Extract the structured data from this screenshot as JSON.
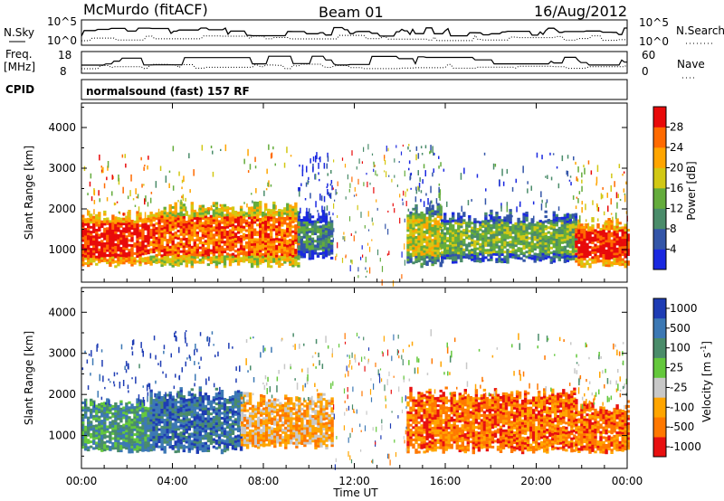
{
  "header": {
    "station": "McMurdo (fitACF)",
    "beam": "Beam 01",
    "date": "16/Aug/2012"
  },
  "top_panels": {
    "nsky_label": "N.Sky",
    "nsky_ticks": [
      "10^5",
      "10^0"
    ],
    "nsearch_label": "N.Search",
    "nsearch_ticks": [
      "10^5",
      "10^0"
    ],
    "freq_label_1": "Freq.",
    "freq_label_2": "[MHz]",
    "freq_ticks": [
      "18",
      "8"
    ],
    "nave_label": "Nave",
    "nave_ticks": [
      "60",
      "0"
    ],
    "cpid_label": "CPID",
    "cpid_text": "normalsound (fast) 157 RF"
  },
  "chart_data": [
    {
      "type": "heatmap",
      "title": "",
      "xlabel": "Time UT",
      "ylabel": "Slant Range [km]",
      "x_ticks": [
        "00:00",
        "04:00",
        "08:00",
        "12:00",
        "16:00",
        "20:00",
        "00:00"
      ],
      "xlim": [
        0,
        24
      ],
      "ylim": [
        200,
        4600
      ],
      "y_ticks": [
        1000,
        2000,
        3000,
        4000
      ],
      "colorbar": {
        "label": "Power [dB]",
        "ticks": [
          "4",
          "8",
          "12",
          "16",
          "20",
          "24",
          "28"
        ],
        "colors": [
          "#1a28e0",
          "#3355a8",
          "#4a8c6a",
          "#64ac3c",
          "#d2c814",
          "#ffa500",
          "#ff6a00",
          "#e80a0a"
        ]
      },
      "echo_regions": [
        {
          "t_start": 0.0,
          "t_end": 3.0,
          "r_min": 600,
          "r_max": 1800,
          "level": 7
        },
        {
          "t_start": 3.0,
          "t_end": 9.5,
          "r_min": 600,
          "r_max": 2000,
          "level": 6
        },
        {
          "t_start": 9.5,
          "t_end": 11.0,
          "r_min": 800,
          "r_max": 1800,
          "level": 2
        },
        {
          "t_start": 14.3,
          "t_end": 15.8,
          "r_min": 600,
          "r_max": 2000,
          "level": 4
        },
        {
          "t_start": 15.8,
          "t_end": 21.7,
          "r_min": 700,
          "r_max": 1800,
          "level": 3
        },
        {
          "t_start": 21.7,
          "t_end": 24.0,
          "r_min": 600,
          "r_max": 1600,
          "level": 7
        }
      ]
    },
    {
      "type": "heatmap",
      "title": "",
      "xlabel": "Time UT",
      "ylabel": "Slant Range [km]",
      "x_ticks": [
        "00:00",
        "04:00",
        "08:00",
        "12:00",
        "16:00",
        "20:00",
        "00:00"
      ],
      "xlim": [
        0,
        24
      ],
      "ylim": [
        200,
        4600
      ],
      "y_ticks": [
        1000,
        2000,
        3000,
        4000
      ],
      "colorbar": {
        "label": "Velocity [m s",
        "unit_exponent": "-1",
        "unit_close": "]",
        "ticks": [
          "1000",
          "500",
          "100",
          "25",
          "-25",
          "-100",
          "-500",
          "-1000"
        ],
        "colors": [
          "#1e3cb4",
          "#3c78b4",
          "#4a8c6a",
          "#64c83c",
          "#c8c8c8",
          "#ffa500",
          "#ff7800",
          "#e81010"
        ]
      },
      "echo_regions": [
        {
          "t_start": 0.0,
          "t_end": 3.0,
          "r_min": 600,
          "r_max": 1800,
          "level": 2
        },
        {
          "t_start": 3.0,
          "t_end": 7.0,
          "r_min": 600,
          "r_max": 2000,
          "level": 1
        },
        {
          "t_start": 7.0,
          "t_end": 11.0,
          "r_min": 700,
          "r_max": 1900,
          "level": 5
        },
        {
          "t_start": 14.3,
          "t_end": 21.7,
          "r_min": 600,
          "r_max": 2000,
          "level": 6
        },
        {
          "t_start": 21.7,
          "t_end": 24.0,
          "r_min": 600,
          "r_max": 1700,
          "level": 6
        }
      ]
    }
  ]
}
